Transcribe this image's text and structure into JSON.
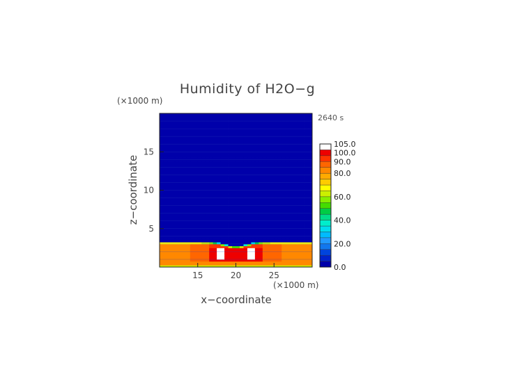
{
  "chart_data": {
    "type": "heatmap",
    "title": "Humidity of H2O−g",
    "xlabel": "x−coordinate",
    "ylabel": "z−coordinate",
    "x_unit": "(×1000 m)",
    "y_unit": "(×1000 m)",
    "time_label": "2640 s",
    "xlim": [
      10,
      30
    ],
    "ylim": [
      0,
      20
    ],
    "x_ticks": [
      15,
      20,
      25
    ],
    "y_ticks": [
      5,
      10,
      15
    ],
    "colorbar": {
      "levels": [
        0,
        5,
        10,
        15,
        20,
        25,
        30,
        35,
        40,
        45,
        50,
        55,
        60,
        65,
        70,
        75,
        80,
        85,
        90,
        95,
        100,
        105
      ],
      "tick_labels": [
        "0.0",
        "20.0",
        "40.0",
        "60.0",
        "80.0",
        "90.0",
        "100.0",
        "105.0"
      ],
      "colors": [
        "#0000aa",
        "#0022cc",
        "#0044dd",
        "#1177ee",
        "#2299ff",
        "#00bbff",
        "#00ddee",
        "#00eecc",
        "#00dd88",
        "#00cc44",
        "#44dd00",
        "#88ee00",
        "#ccf000",
        "#ffff00",
        "#ffcc00",
        "#ffaa00",
        "#ff8800",
        "#ff6600",
        "#ff3300",
        "#ee0000",
        "#ffffff"
      ]
    },
    "field": {
      "description": "Near-saturated moist boundary layer below ~3 km (80-100%), dry upper domain (~0-5%), with saturated cloud region (~100-105%) centered near x=20 km",
      "background_value": 2,
      "surface_layer_top_km": 3.1,
      "cloud_center_x_km": 20,
      "cloud_top_km": 2.6
    }
  }
}
